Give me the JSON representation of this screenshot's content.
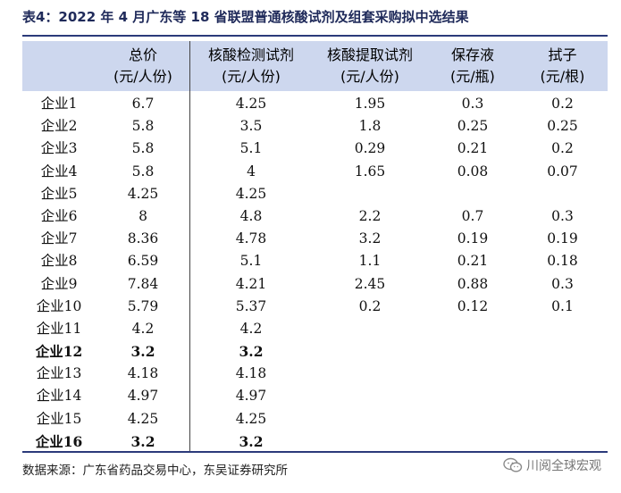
{
  "title": "表4：2022 年 4 月广东等 18 省联盟普通核酸试剂及组套采购拟中选结果",
  "columns": [
    {
      "line1": "",
      "line2": ""
    },
    {
      "line1": "总价",
      "line2": "(元/人份)"
    },
    {
      "line1": "核酸检测试剂",
      "line2": "(元/人份)"
    },
    {
      "line1": "核酸提取试剂",
      "line2": "(元/人份)"
    },
    {
      "line1": "保存液",
      "line2": "(元/瓶)"
    },
    {
      "line1": "拭子",
      "line2": "(元/根)"
    }
  ],
  "rows": [
    {
      "name": "企业1",
      "total": "6.7",
      "test": "4.25",
      "extract": "1.95",
      "preserve": "0.3",
      "swab": "0.2",
      "bold": false
    },
    {
      "name": "企业2",
      "total": "5.8",
      "test": "3.5",
      "extract": "1.8",
      "preserve": "0.25",
      "swab": "0.25",
      "bold": false
    },
    {
      "name": "企业3",
      "total": "5.8",
      "test": "5.1",
      "extract": "0.29",
      "preserve": "0.21",
      "swab": "0.2",
      "bold": false
    },
    {
      "name": "企业4",
      "total": "5.8",
      "test": "4",
      "extract": "1.65",
      "preserve": "0.08",
      "swab": "0.07",
      "bold": false
    },
    {
      "name": "企业5",
      "total": "4.25",
      "test": "4.25",
      "extract": "",
      "preserve": "",
      "swab": "",
      "bold": false
    },
    {
      "name": "企业6",
      "total": "8",
      "test": "4.8",
      "extract": "2.2",
      "preserve": "0.7",
      "swab": "0.3",
      "bold": false
    },
    {
      "name": "企业7",
      "total": "8.36",
      "test": "4.78",
      "extract": "3.2",
      "preserve": "0.19",
      "swab": "0.19",
      "bold": false
    },
    {
      "name": "企业8",
      "total": "6.59",
      "test": "5.1",
      "extract": "1.1",
      "preserve": "0.21",
      "swab": "0.18",
      "bold": false
    },
    {
      "name": "企业9",
      "total": "7.84",
      "test": "4.21",
      "extract": "2.45",
      "preserve": "0.88",
      "swab": "0.3",
      "bold": false
    },
    {
      "name": "企业10",
      "total": "5.79",
      "test": "5.37",
      "extract": "0.2",
      "preserve": "0.12",
      "swab": "0.1",
      "bold": false
    },
    {
      "name": "企业11",
      "total": "4.2",
      "test": "4.2",
      "extract": "",
      "preserve": "",
      "swab": "",
      "bold": false
    },
    {
      "name": "企业12",
      "total": "3.2",
      "test": "3.2",
      "extract": "",
      "preserve": "",
      "swab": "",
      "bold": true
    },
    {
      "name": "企业13",
      "total": "4.18",
      "test": "4.18",
      "extract": "",
      "preserve": "",
      "swab": "",
      "bold": false
    },
    {
      "name": "企业14",
      "total": "4.97",
      "test": "4.97",
      "extract": "",
      "preserve": "",
      "swab": "",
      "bold": false
    },
    {
      "name": "企业15",
      "total": "4.25",
      "test": "4.25",
      "extract": "",
      "preserve": "",
      "swab": "",
      "bold": false
    },
    {
      "name": "企业16",
      "total": "3.2",
      "test": "3.2",
      "extract": "",
      "preserve": "",
      "swab": "",
      "bold": true
    }
  ],
  "source": "数据来源：广东省药品交易中心，东吴证券研究所",
  "watermark": {
    "text": "川阅全球宏观",
    "icon": "wechat-icon"
  }
}
